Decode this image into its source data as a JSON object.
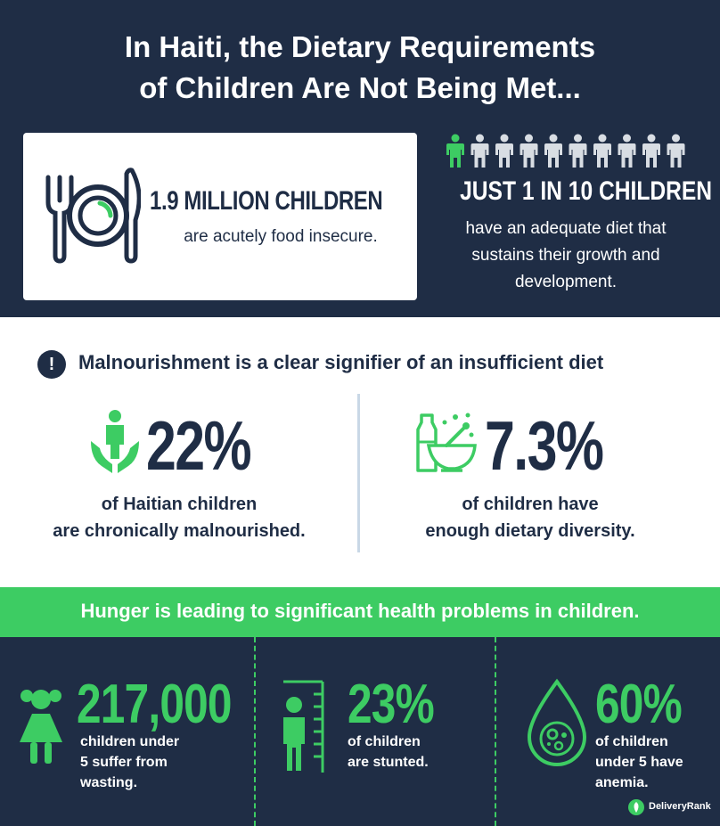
{
  "title": {
    "line1": "In Haiti, the Dietary Requirements",
    "line2": "of Children Are Not Being Met..."
  },
  "food_insecure": {
    "headline": "1.9 MILLION CHILDREN",
    "subtext": "are acutely food insecure.",
    "icon": "plate-fork-knife-icon"
  },
  "adequate_diet": {
    "headline": "JUST 1 IN 10 CHILDREN",
    "line1": "have an adequate diet that",
    "line2": "sustains their growth and",
    "line3": "development.",
    "highlighted_count": 1,
    "total_count": 10,
    "icon": "person-icon"
  },
  "malnourishment": {
    "heading": "Malnourishment is a clear signifier of an insufficient diet",
    "stat1": {
      "value": "22%",
      "line1": "of Haitian children",
      "line2": "are chronically malnourished.",
      "icon": "child-in-hands-icon"
    },
    "stat2": {
      "value": "7.3%",
      "line1": "of children have",
      "line2": "enough dietary diversity.",
      "icon": "bowl-and-bottle-icon"
    }
  },
  "hunger": {
    "heading": "Hunger is leading to significant health problems in children.",
    "stat1": {
      "value": "217,000",
      "line1": "children under",
      "line2": "5 suffer from",
      "line3": "wasting.",
      "icon": "girl-icon"
    },
    "stat2": {
      "value": "23%",
      "line1": "of children",
      "line2": "are stunted.",
      "icon": "child-height-chart-icon"
    },
    "stat3": {
      "value": "60%",
      "line1": "of children",
      "line2": "under 5 have",
      "line3": "anemia.",
      "icon": "blood-drop-icon"
    }
  },
  "brand": {
    "name": "DeliveryRank",
    "icon": "delivery-rank-logo-icon"
  },
  "colors": {
    "navy": "#1f2d45",
    "green": "#3dcc63",
    "white": "#ffffff"
  }
}
